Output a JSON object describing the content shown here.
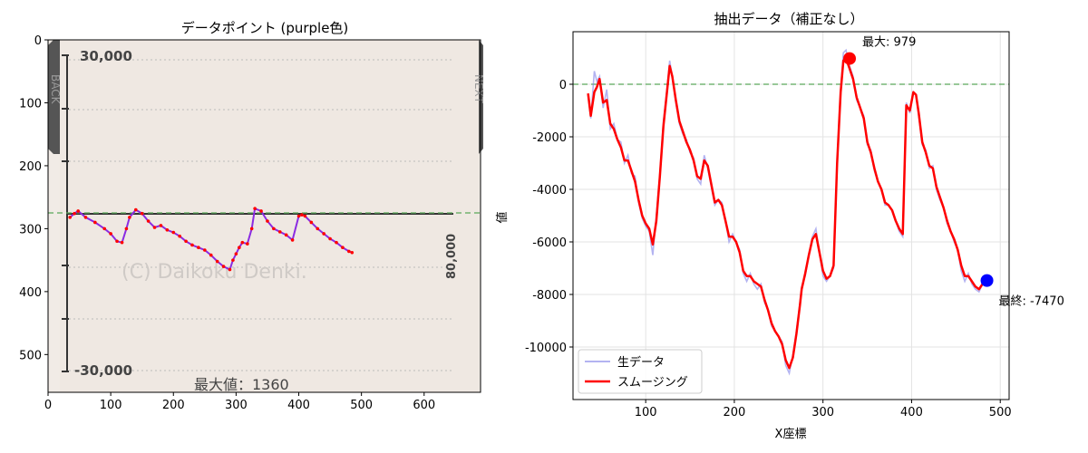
{
  "chart_data": [
    {
      "type": "line",
      "title": "データポイント (purple色)",
      "xlabel": "",
      "ylabel": "",
      "xlim": [
        0,
        690
      ],
      "ylim": [
        560,
        0
      ],
      "x_ticks": [
        0,
        100,
        200,
        300,
        400,
        500,
        600
      ],
      "y_ticks": [
        0,
        100,
        200,
        300,
        400,
        500
      ],
      "background_image": {
        "inner_scale_top": "30,000",
        "inner_scale_bottom": "-30,000",
        "inner_right_label": "80,000",
        "watermark": "(C) Daikoku Denki.",
        "bottom_caption": "最大値：1360",
        "left_nav_text": "BACK",
        "right_nav_text": "NEXT"
      },
      "reference_line_y": 275,
      "series": [
        {
          "color": "#8a2be2",
          "marker_color": "#ff0000",
          "x": [
            35,
            42,
            48,
            60,
            75,
            90,
            100,
            110,
            118,
            125,
            130,
            140,
            150,
            160,
            170,
            180,
            190,
            200,
            210,
            220,
            230,
            240,
            250,
            260,
            270,
            280,
            290,
            295,
            300,
            305,
            310,
            318,
            325,
            330,
            340,
            350,
            360,
            370,
            380,
            390,
            400,
            405,
            410,
            420,
            430,
            440,
            450,
            460,
            470,
            480,
            485
          ],
          "y": [
            282,
            276,
            272,
            282,
            290,
            300,
            308,
            320,
            322,
            300,
            282,
            270,
            276,
            288,
            298,
            295,
            302,
            306,
            312,
            320,
            326,
            330,
            334,
            342,
            352,
            360,
            365,
            350,
            340,
            330,
            322,
            324,
            300,
            268,
            272,
            288,
            300,
            305,
            310,
            318,
            280,
            278,
            280,
            290,
            300,
            308,
            316,
            322,
            330,
            336,
            338
          ]
        }
      ]
    },
    {
      "type": "line",
      "title": "抽出データ（補正なし）",
      "xlabel": "X座標",
      "ylabel": "値",
      "xlim": [
        18,
        510
      ],
      "ylim": [
        -12000,
        2000
      ],
      "x_ticks": [
        100,
        200,
        300,
        400,
        500
      ],
      "y_ticks": [
        0,
        -2000,
        -4000,
        -6000,
        -8000,
        -10000
      ],
      "grid": true,
      "legend_position": "lower-left",
      "reference_line_y": 0,
      "series": [
        {
          "name": "生データ",
          "color": "#8080e8",
          "x": [
            35,
            38,
            42,
            45,
            48,
            52,
            56,
            60,
            64,
            68,
            72,
            76,
            80,
            84,
            88,
            92,
            96,
            100,
            104,
            108,
            112,
            116,
            120,
            124,
            127,
            130,
            134,
            138,
            142,
            146,
            150,
            154,
            158,
            162,
            166,
            170,
            174,
            178,
            182,
            186,
            190,
            194,
            198,
            202,
            206,
            210,
            214,
            218,
            222,
            226,
            230,
            234,
            238,
            242,
            246,
            250,
            254,
            258,
            262,
            266,
            270,
            274,
            276,
            280,
            284,
            288,
            292,
            296,
            300,
            304,
            308,
            312,
            316,
            320,
            323,
            326,
            330,
            334,
            338,
            342,
            346,
            350,
            354,
            358,
            362,
            366,
            370,
            374,
            378,
            382,
            386,
            390,
            394,
            398,
            402,
            405,
            408,
            412,
            416,
            420,
            424,
            428,
            432,
            436,
            440,
            444,
            448,
            452,
            456,
            460,
            464,
            468,
            472,
            476,
            480,
            484
          ],
          "values": [
            -400,
            -1300,
            500,
            100,
            300,
            -900,
            -200,
            -1700,
            -1500,
            -2100,
            -2200,
            -3000,
            -2700,
            -3400,
            -3500,
            -4500,
            -5100,
            -5400,
            -5600,
            -6500,
            -5000,
            -3400,
            -1400,
            -200,
            900,
            300,
            -700,
            -1500,
            -1900,
            -2100,
            -2600,
            -2800,
            -3600,
            -3800,
            -2700,
            -3200,
            -3900,
            -4600,
            -4400,
            -4500,
            -5200,
            -6000,
            -5700,
            -6000,
            -6300,
            -7200,
            -7500,
            -7200,
            -7600,
            -7800,
            -7600,
            -8300,
            -8600,
            -9200,
            -9400,
            -9600,
            -9800,
            -10700,
            -11000,
            -10300,
            -9400,
            -8300,
            -7700,
            -7300,
            -6500,
            -5800,
            -5500,
            -6400,
            -7300,
            -7500,
            -7300,
            -7000,
            -3000,
            -200,
            1200,
            1300,
            700,
            300,
            -600,
            -900,
            -1200,
            -2300,
            -2500,
            -3300,
            -3700,
            -4000,
            -4600,
            -4600,
            -4800,
            -5200,
            -5600,
            -5800,
            -700,
            -1100,
            -300,
            -400,
            -1200,
            -2300,
            -2500,
            -3200,
            -3100,
            -4000,
            -4400,
            -4700,
            -5300,
            -5600,
            -6000,
            -6300,
            -7100,
            -7500,
            -7200,
            -7600,
            -7800,
            -7900,
            -7600,
            -7500
          ]
        },
        {
          "name": "スムージング",
          "color": "#ff0000",
          "x": [
            35,
            38,
            42,
            45,
            48,
            52,
            56,
            60,
            64,
            68,
            72,
            76,
            80,
            84,
            88,
            92,
            96,
            100,
            104,
            108,
            112,
            116,
            120,
            124,
            127,
            130,
            134,
            138,
            142,
            146,
            150,
            154,
            158,
            162,
            166,
            170,
            174,
            178,
            182,
            186,
            190,
            194,
            198,
            202,
            206,
            210,
            214,
            218,
            222,
            226,
            230,
            234,
            238,
            242,
            246,
            250,
            254,
            258,
            262,
            266,
            270,
            274,
            276,
            280,
            284,
            288,
            292,
            296,
            300,
            304,
            308,
            312,
            316,
            320,
            323,
            326,
            330,
            334,
            338,
            342,
            346,
            350,
            354,
            358,
            362,
            366,
            370,
            374,
            378,
            382,
            386,
            390,
            394,
            398,
            402,
            405,
            408,
            412,
            416,
            420,
            424,
            428,
            432,
            436,
            440,
            444,
            448,
            452,
            456,
            460,
            464,
            468,
            472,
            476,
            480,
            484
          ],
          "values": [
            -350,
            -1200,
            -300,
            -100,
            200,
            -700,
            -600,
            -1500,
            -1700,
            -2100,
            -2400,
            -2900,
            -2900,
            -3300,
            -3700,
            -4400,
            -5000,
            -5300,
            -5500,
            -6100,
            -5200,
            -3500,
            -1600,
            -300,
            700,
            300,
            -600,
            -1400,
            -1800,
            -2200,
            -2500,
            -2900,
            -3500,
            -3600,
            -2900,
            -3100,
            -3800,
            -4500,
            -4400,
            -4600,
            -5200,
            -5800,
            -5800,
            -6000,
            -6400,
            -7100,
            -7300,
            -7300,
            -7500,
            -7600,
            -7700,
            -8200,
            -8600,
            -9100,
            -9400,
            -9600,
            -9900,
            -10500,
            -10800,
            -10400,
            -9500,
            -8400,
            -7800,
            -7200,
            -6500,
            -5900,
            -5700,
            -6400,
            -7100,
            -7400,
            -7300,
            -6900,
            -3000,
            -300,
            900,
            979,
            600,
            200,
            -500,
            -900,
            -1300,
            -2200,
            -2600,
            -3200,
            -3700,
            -4000,
            -4500,
            -4600,
            -4800,
            -5200,
            -5500,
            -5700,
            -800,
            -1000,
            -300,
            -400,
            -1100,
            -2200,
            -2600,
            -3100,
            -3200,
            -3900,
            -4300,
            -4700,
            -5200,
            -5600,
            -5900,
            -6300,
            -6900,
            -7300,
            -7300,
            -7500,
            -7700,
            -7800,
            -7600,
            -7470
          ]
        }
      ],
      "annotations": [
        {
          "label": "最大: 979",
          "x": 330,
          "y": 979,
          "color": "#ff0000"
        },
        {
          "label": "最終: -7470",
          "x": 485,
          "y": -7470,
          "color": "#0000ff"
        }
      ]
    }
  ]
}
